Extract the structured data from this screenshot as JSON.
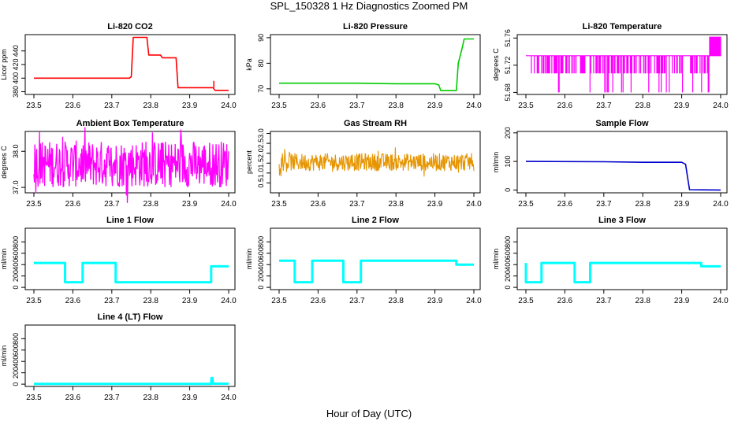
{
  "figure": {
    "title": "SPL_150328  1 Hz Diagnostics Zoomed PM",
    "xlabel": "Hour of Day (UTC)"
  },
  "chart_data": [
    {
      "type": "line",
      "title": "Li-820 CO2",
      "ylabel": "Licor ppm",
      "xlim": [
        23.5,
        24.0
      ],
      "ylim": [
        376,
        464
      ],
      "xticks": [
        "23.5",
        "23.6",
        "23.7",
        "23.8",
        "23.9",
        "24.0"
      ],
      "yticks": [
        "380",
        "400",
        "420",
        "440"
      ],
      "ytick_values": [
        380,
        400,
        420,
        440
      ],
      "color": "#ff0000",
      "x": [
        23.5,
        23.745,
        23.75,
        23.755,
        23.79,
        23.795,
        23.825,
        23.83,
        23.865,
        23.87,
        23.96,
        23.965,
        23.98,
        24.0
      ],
      "y": [
        400,
        400,
        402,
        460,
        460,
        434,
        434,
        430,
        430,
        386,
        386,
        382,
        382,
        382
      ]
    },
    {
      "type": "line",
      "title": "Li-820 Pressure",
      "ylabel": "kPa",
      "xlim": [
        23.5,
        24.0
      ],
      "ylim": [
        67.8,
        91.2
      ],
      "xticks": [
        "23.5",
        "23.6",
        "23.7",
        "23.8",
        "23.9",
        "24.0"
      ],
      "yticks": [
        "70",
        "80",
        "90"
      ],
      "ytick_values": [
        70,
        80,
        90
      ],
      "color": "#00cc00",
      "x": [
        23.5,
        23.7,
        23.8,
        23.9,
        23.91,
        23.915,
        23.955,
        23.96,
        23.97,
        23.975,
        24.0
      ],
      "y": [
        72.2,
        72.2,
        72.0,
        72.0,
        71.5,
        69.3,
        69.3,
        80,
        86,
        89.5,
        89.5
      ]
    },
    {
      "type": "line",
      "title": "Li-820 Temperature",
      "ylabel": "degrees C",
      "xlim": [
        23.5,
        24.0
      ],
      "ylim": [
        51.677,
        51.765
      ],
      "xticks": [
        "23.5",
        "23.6",
        "23.7",
        "23.8",
        "23.9",
        "24.0"
      ],
      "yticks": [
        "51.68",
        "51.72",
        "51.76"
      ],
      "ytick_values": [
        51.68,
        51.72,
        51.76
      ],
      "color": "#ff00ff",
      "baseline": 51.734,
      "low_state": 51.708,
      "high_state": 51.762
    },
    {
      "type": "line",
      "title": "Ambient Box Temperature",
      "ylabel": "degrees C",
      "xlim": [
        23.5,
        24.0
      ],
      "ylim": [
        36.85,
        38.55
      ],
      "xticks": [
        "23.5",
        "23.6",
        "23.7",
        "23.8",
        "23.9",
        "24.0"
      ],
      "yticks": [
        "37.0",
        "38.0"
      ],
      "ytick_values": [
        37.0,
        38.0
      ],
      "color": "#ff00ff",
      "range": [
        37.0,
        38.3
      ]
    },
    {
      "type": "line",
      "title": "Gas Stream RH",
      "ylabel": "percent",
      "xlim": [
        23.5,
        24.0
      ],
      "ylim": [
        0.0,
        3.1
      ],
      "xticks": [
        "23.5",
        "23.6",
        "23.7",
        "23.8",
        "23.9",
        "24.0"
      ],
      "yticks": [
        "0.5",
        "1.0",
        "1.5",
        "2.0",
        "2.5",
        "3.0"
      ],
      "ytick_values": [
        0.5,
        1.0,
        1.5,
        2.0,
        2.5,
        3.0
      ],
      "color": "#e69500",
      "range": [
        1.1,
        2.0
      ]
    },
    {
      "type": "line",
      "title": "Sample Flow",
      "ylabel": "ml/min",
      "xlim": [
        23.5,
        24.0
      ],
      "ylim": [
        -10,
        205
      ],
      "xticks": [
        "23.5",
        "23.6",
        "23.7",
        "23.8",
        "23.9",
        "24.0"
      ],
      "yticks": [
        "0",
        "100",
        "200"
      ],
      "ytick_values": [
        0,
        100,
        200
      ],
      "color": "#0000cc",
      "x": [
        23.5,
        23.7,
        23.8,
        23.9,
        23.91,
        23.92,
        24.0
      ],
      "y": [
        100,
        99,
        97,
        97,
        90,
        1,
        0
      ]
    },
    {
      "type": "line",
      "title": "Line 1 Flow",
      "ylabel": "ml/min",
      "xlim": [
        23.5,
        24.0
      ],
      "ylim": [
        -40,
        1040
      ],
      "xticks": [
        "23.5",
        "23.6",
        "23.7",
        "23.8",
        "23.9",
        "24.0"
      ],
      "yticks": [
        "0",
        "200",
        "400",
        "600",
        "800"
      ],
      "ytick_values": [
        0,
        200,
        400,
        600,
        800
      ],
      "color": "#00ffff",
      "x": [
        23.5,
        23.58,
        23.58,
        23.625,
        23.625,
        23.71,
        23.71,
        23.955,
        23.955,
        24.0
      ],
      "y": [
        430,
        430,
        90,
        90,
        430,
        430,
        90,
        90,
        370,
        370
      ]
    },
    {
      "type": "line",
      "title": "Line 2 Flow",
      "ylabel": "ml/min",
      "xlim": [
        23.5,
        24.0
      ],
      "ylim": [
        -40,
        1040
      ],
      "xticks": [
        "23.5",
        "23.6",
        "23.7",
        "23.8",
        "23.9",
        "24.0"
      ],
      "yticks": [
        "0",
        "200",
        "400",
        "600",
        "800"
      ],
      "ytick_values": [
        0,
        200,
        400,
        600,
        800
      ],
      "color": "#00ffff",
      "x": [
        23.5,
        23.54,
        23.54,
        23.585,
        23.585,
        23.665,
        23.665,
        23.71,
        23.71,
        23.955,
        23.955,
        24.0
      ],
      "y": [
        470,
        470,
        90,
        90,
        470,
        470,
        90,
        90,
        470,
        470,
        400,
        400
      ]
    },
    {
      "type": "line",
      "title": "Line 3 Flow",
      "ylabel": "ml/min",
      "xlim": [
        23.5,
        24.0
      ],
      "ylim": [
        -40,
        1040
      ],
      "xticks": [
        "23.5",
        "23.6",
        "23.7",
        "23.8",
        "23.9",
        "24.0"
      ],
      "yticks": [
        "0",
        "200",
        "400",
        "600",
        "800"
      ],
      "ytick_values": [
        0,
        200,
        400,
        600,
        800
      ],
      "color": "#00ffff",
      "x": [
        23.5,
        23.5,
        23.54,
        23.54,
        23.625,
        23.625,
        23.665,
        23.665,
        23.95,
        23.95,
        24.0
      ],
      "y": [
        430,
        90,
        90,
        430,
        430,
        90,
        90,
        430,
        430,
        370,
        370
      ]
    },
    {
      "type": "line",
      "title": "Line 4 (LT) Flow",
      "ylabel": "ml/min",
      "xlim": [
        23.5,
        24.0
      ],
      "ylim": [
        -40,
        1040
      ],
      "xticks": [
        "23.5",
        "23.6",
        "23.7",
        "23.8",
        "23.9",
        "24.0"
      ],
      "yticks": [
        "0",
        "200",
        "400",
        "600",
        "800"
      ],
      "ytick_values": [
        0,
        200,
        400,
        600,
        800
      ],
      "color": "#00ffff",
      "x": [
        23.5,
        23.955,
        23.956,
        23.958,
        23.96,
        24.0
      ],
      "y": [
        5,
        5,
        110,
        110,
        8,
        8
      ]
    }
  ]
}
